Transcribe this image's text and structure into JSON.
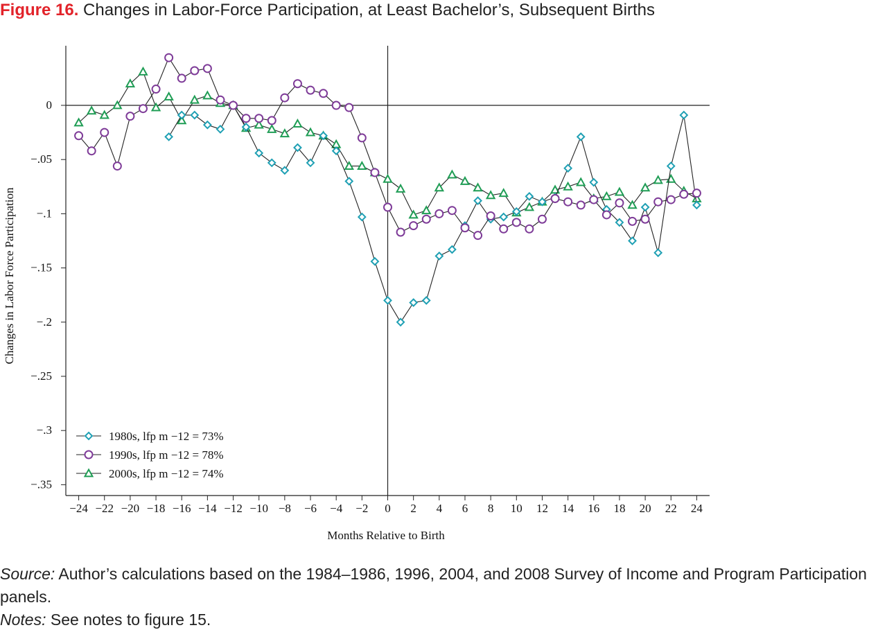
{
  "figure": {
    "label": "Figure 16.",
    "title": "Changes in Labor-Force Participation, at Least Bachelor’s, Subsequent Births"
  },
  "footer": {
    "source_label": "Source:",
    "source_text": "Author’s calculations based on the 1984–1986, 1996, 2004, and 2008 Survey of Income and Program Participation panels.",
    "notes_label": "Notes:",
    "notes_text": "See notes to figure 15."
  },
  "chart_data": {
    "type": "line",
    "title": "",
    "xlabel": "Months Relative to Birth",
    "ylabel": "Changes in Labor Force Participation",
    "xlim": [
      -25,
      25
    ],
    "ylim": [
      -0.36,
      0.055
    ],
    "x_ticks": [
      -24,
      -22,
      -20,
      -18,
      -16,
      -14,
      -12,
      -10,
      -8,
      -6,
      -4,
      -2,
      0,
      2,
      4,
      6,
      8,
      10,
      12,
      14,
      16,
      18,
      20,
      22,
      24
    ],
    "x_tick_labels": [
      "−24",
      "−22",
      "−20",
      "−18",
      "−16",
      "−14",
      "−12",
      "−10",
      "−8",
      "−6",
      "−4",
      "−2",
      "0",
      "2",
      "4",
      "6",
      "8",
      "10",
      "12",
      "14",
      "16",
      "18",
      "20",
      "22",
      "24"
    ],
    "y_ticks": [
      0,
      -0.05,
      -0.1,
      -0.15,
      -0.2,
      -0.25,
      -0.3,
      -0.35
    ],
    "y_tick_labels": [
      "0",
      "−.05",
      "−.1",
      "−.15",
      "−.2",
      "−.25",
      "−.3",
      "−.35"
    ],
    "reference_lines": {
      "horizontal": 0,
      "vertical": 0
    },
    "legend_position": "bottom-left",
    "series": [
      {
        "name": "1980s, lfp m −12 = 73%",
        "marker": "diamond",
        "color": "#1fa0b4",
        "x": [
          -17,
          -16,
          -15,
          -14,
          -13,
          -12,
          -11,
          -10,
          -9,
          -8,
          -7,
          -6,
          -5,
          -4,
          -3,
          -2,
          -1,
          0,
          1,
          2,
          3,
          4,
          5,
          6,
          7,
          8,
          9,
          10,
          11,
          12,
          13,
          14,
          15,
          16,
          17,
          18,
          19,
          20,
          21,
          22,
          23,
          24
        ],
        "y": [
          -0.029,
          -0.009,
          -0.009,
          -0.018,
          -0.022,
          0,
          -0.02,
          -0.044,
          -0.053,
          -0.06,
          -0.039,
          -0.053,
          -0.028,
          -0.042,
          -0.07,
          -0.103,
          -0.144,
          -0.18,
          -0.2,
          -0.182,
          -0.18,
          -0.139,
          -0.133,
          -0.111,
          -0.088,
          -0.105,
          -0.103,
          -0.098,
          -0.084,
          -0.089,
          -0.085,
          -0.058,
          -0.029,
          -0.071,
          -0.096,
          -0.108,
          -0.125,
          -0.094,
          -0.136,
          -0.056,
          -0.009,
          -0.092
        ]
      },
      {
        "name": "1990s, lfp m −12 = 78%",
        "marker": "circle",
        "color": "#7e3b98",
        "x": [
          -24,
          -23,
          -22,
          -21,
          -20,
          -19,
          -18,
          -17,
          -16,
          -15,
          -14,
          -13,
          -12,
          -11,
          -10,
          -9,
          -8,
          -7,
          -6,
          -5,
          -4,
          -3,
          -2,
          -1,
          0,
          1,
          2,
          3,
          4,
          5,
          6,
          7,
          8,
          9,
          10,
          11,
          12,
          13,
          14,
          15,
          16,
          17,
          18,
          19,
          20,
          21,
          22,
          23,
          24
        ],
        "y": [
          -0.028,
          -0.042,
          -0.025,
          -0.056,
          -0.01,
          -0.003,
          0.015,
          0.044,
          0.025,
          0.032,
          0.034,
          0.005,
          0,
          -0.012,
          -0.012,
          -0.014,
          0.007,
          0.02,
          0.014,
          0.011,
          0,
          -0.002,
          -0.03,
          -0.062,
          -0.094,
          -0.117,
          -0.111,
          -0.105,
          -0.1,
          -0.097,
          -0.113,
          -0.12,
          -0.102,
          -0.114,
          -0.108,
          -0.114,
          -0.105,
          -0.086,
          -0.089,
          -0.092,
          -0.087,
          -0.101,
          -0.09,
          -0.107,
          -0.105,
          -0.089,
          -0.087,
          -0.082,
          -0.081
        ]
      },
      {
        "name": "2000s, lfp m −12 = 74%",
        "marker": "triangle",
        "color": "#1f9d55",
        "x": [
          -24,
          -23,
          -22,
          -21,
          -20,
          -19,
          -18,
          -17,
          -16,
          -15,
          -14,
          -13,
          -12,
          -11,
          -10,
          -9,
          -8,
          -7,
          -6,
          -5,
          -4,
          -3,
          -2,
          -1,
          0,
          1,
          2,
          3,
          4,
          5,
          6,
          7,
          8,
          9,
          10,
          11,
          12,
          13,
          14,
          15,
          16,
          17,
          18,
          19,
          20,
          21,
          22,
          23,
          24
        ],
        "y": [
          -0.016,
          -0.005,
          -0.009,
          0,
          0.02,
          0.031,
          -0.002,
          0.008,
          -0.014,
          0.005,
          0.009,
          0.002,
          0,
          -0.021,
          -0.018,
          -0.022,
          -0.026,
          -0.017,
          -0.025,
          -0.028,
          -0.036,
          -0.056,
          -0.056,
          -0.062,
          -0.068,
          -0.077,
          -0.101,
          -0.097,
          -0.076,
          -0.064,
          -0.07,
          -0.076,
          -0.083,
          -0.081,
          -0.099,
          -0.094,
          -0.089,
          -0.078,
          -0.075,
          -0.071,
          -0.086,
          -0.084,
          -0.08,
          -0.092,
          -0.076,
          -0.069,
          -0.068,
          -0.079,
          -0.086
        ]
      }
    ]
  }
}
